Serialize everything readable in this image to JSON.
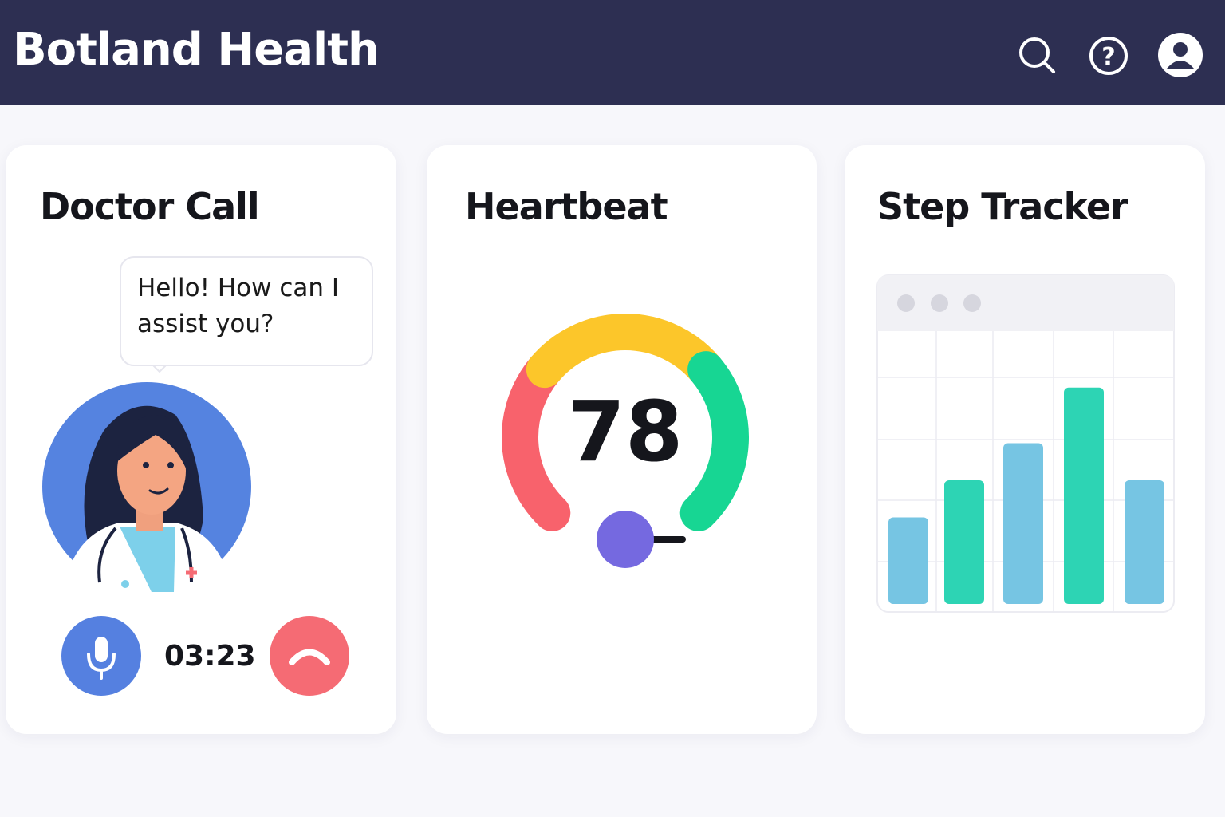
{
  "header": {
    "title": "Botland Health"
  },
  "doctor_call": {
    "title": "Doctor Call",
    "message": "Hello! How can I assist you?",
    "timer": "03:23"
  },
  "heartbeat": {
    "title": "Heartbeat",
    "value": 78
  },
  "step_tracker": {
    "title": "Step Tracker",
    "values": [
      1.4,
      2.0,
      2.6,
      3.5,
      2.0
    ],
    "colors": [
      "#76c5e3",
      "#2dd4b4",
      "#76c5e3",
      "#2dd4b4",
      "#76c5e3"
    ]
  }
}
